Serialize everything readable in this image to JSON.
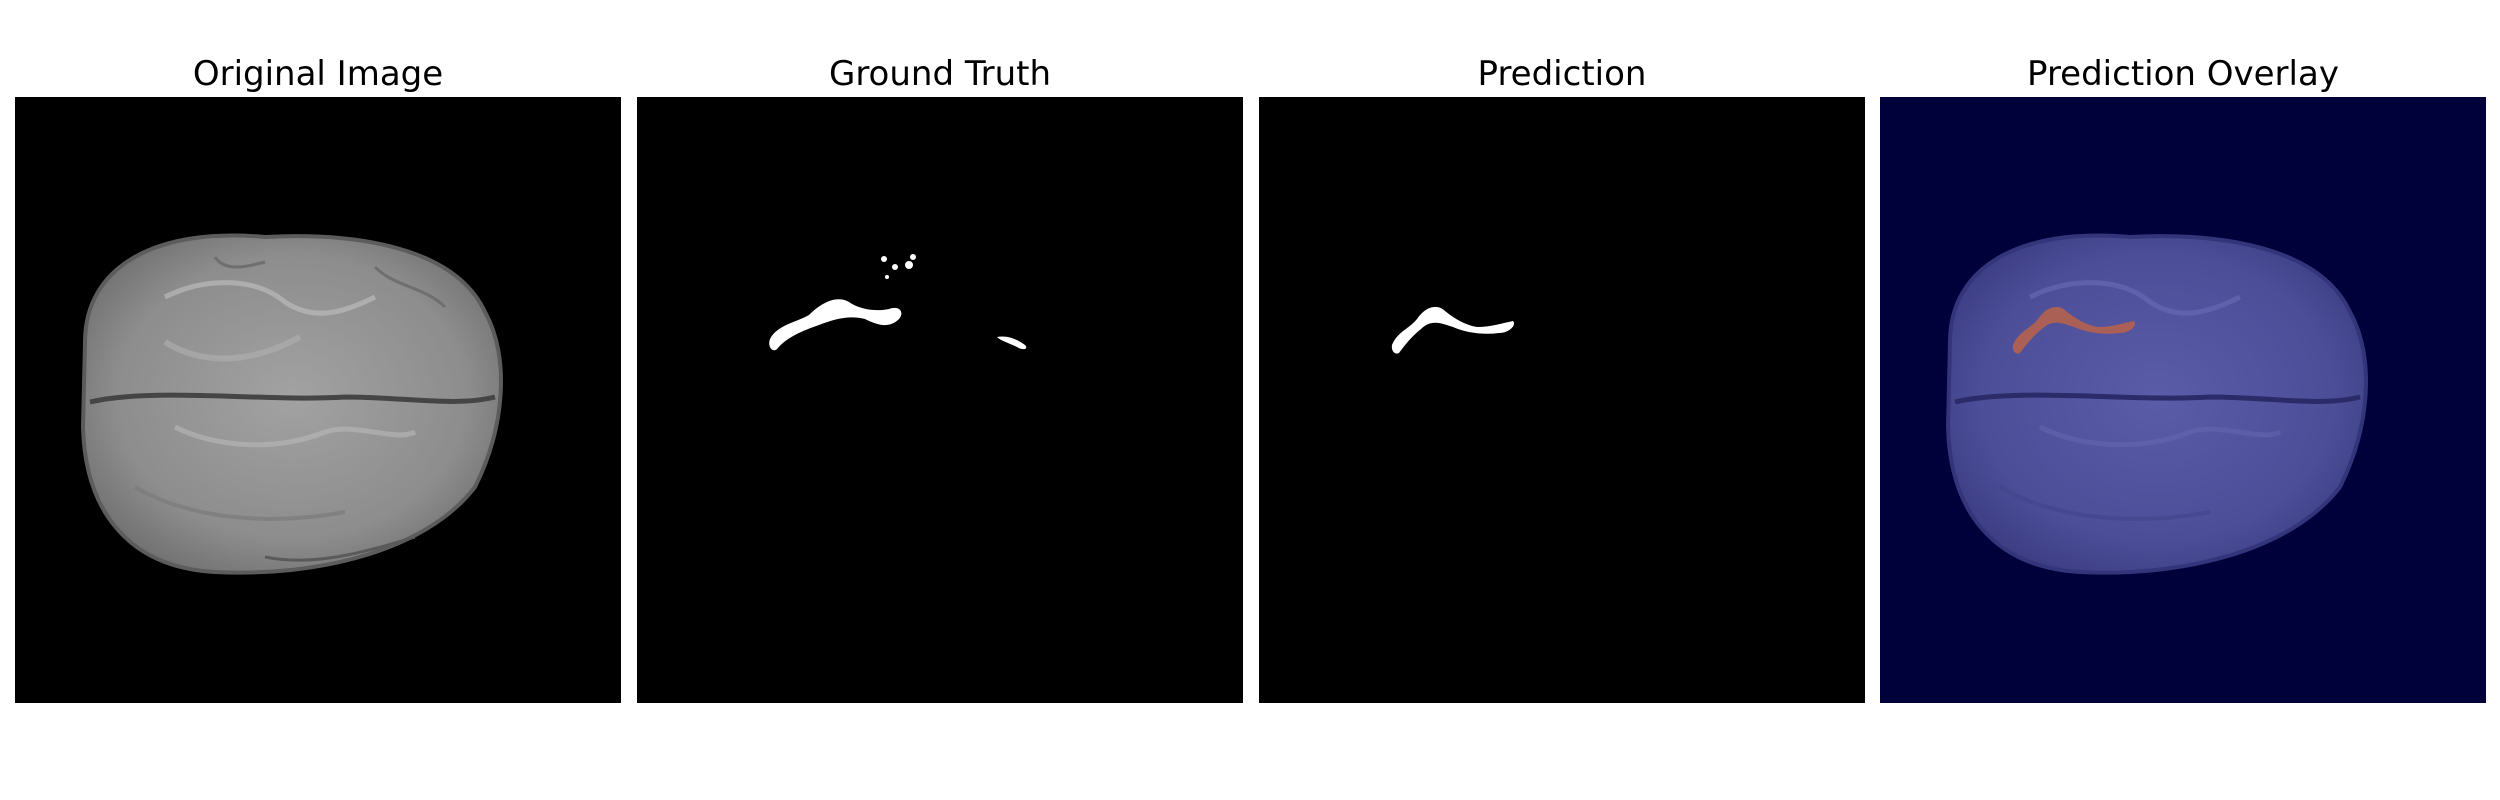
{
  "figure": {
    "panels": [
      {
        "title": "Original Image",
        "background": "#000000"
      },
      {
        "title": "Ground Truth",
        "background": "#000000"
      },
      {
        "title": "Prediction",
        "background": "#000000"
      },
      {
        "title": "Prediction Overlay",
        "background": "#00003a"
      }
    ],
    "colors": {
      "brain_gray": "#8c8c8c",
      "mask_white": "#ffffff",
      "overlay_brain": "#4a4c95",
      "overlay_mask": "#b5624f"
    }
  }
}
